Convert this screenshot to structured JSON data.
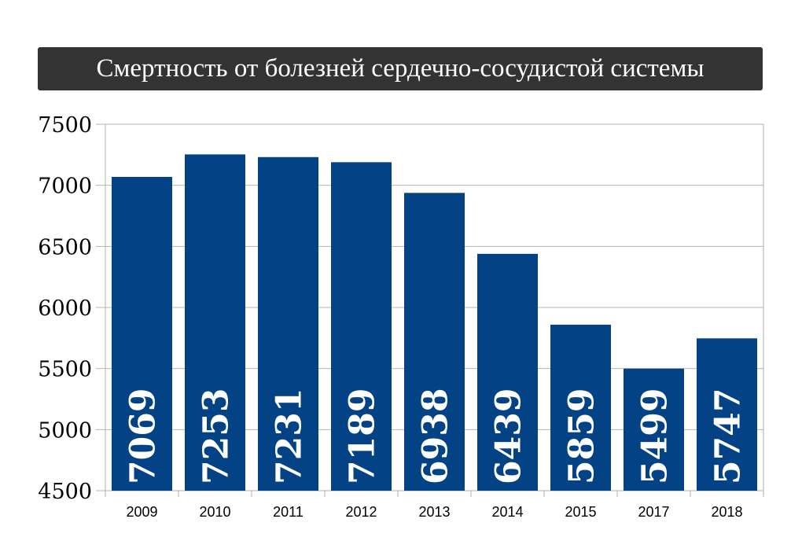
{
  "chart_data": {
    "type": "bar",
    "title": "Смертность от болезней сердечно-сосудистой системы",
    "xlabel": "",
    "ylabel": "",
    "categories": [
      "2009",
      "2010",
      "2011",
      "2012",
      "2013",
      "2014",
      "2015",
      "2017",
      "2018"
    ],
    "values": [
      7069,
      7253,
      7231,
      7189,
      6938,
      6439,
      5859,
      5499,
      5747
    ],
    "data_labels": [
      "7069",
      "7253",
      "7231",
      "7189",
      "6938",
      "6439",
      "5859",
      "5499",
      "5747"
    ],
    "ylim": [
      4500,
      7500
    ],
    "yticks": [
      4500,
      5000,
      5500,
      6000,
      6500,
      7000,
      7500
    ],
    "ytick_labels": [
      "4500",
      "5000",
      "5500",
      "6000",
      "6500",
      "7000",
      "7500"
    ],
    "grid": true,
    "legend": "none",
    "colors": {
      "bar": "#034285",
      "grid": "#b3b3b3",
      "title_background": "#333333",
      "title_text": "#ffffff"
    }
  }
}
